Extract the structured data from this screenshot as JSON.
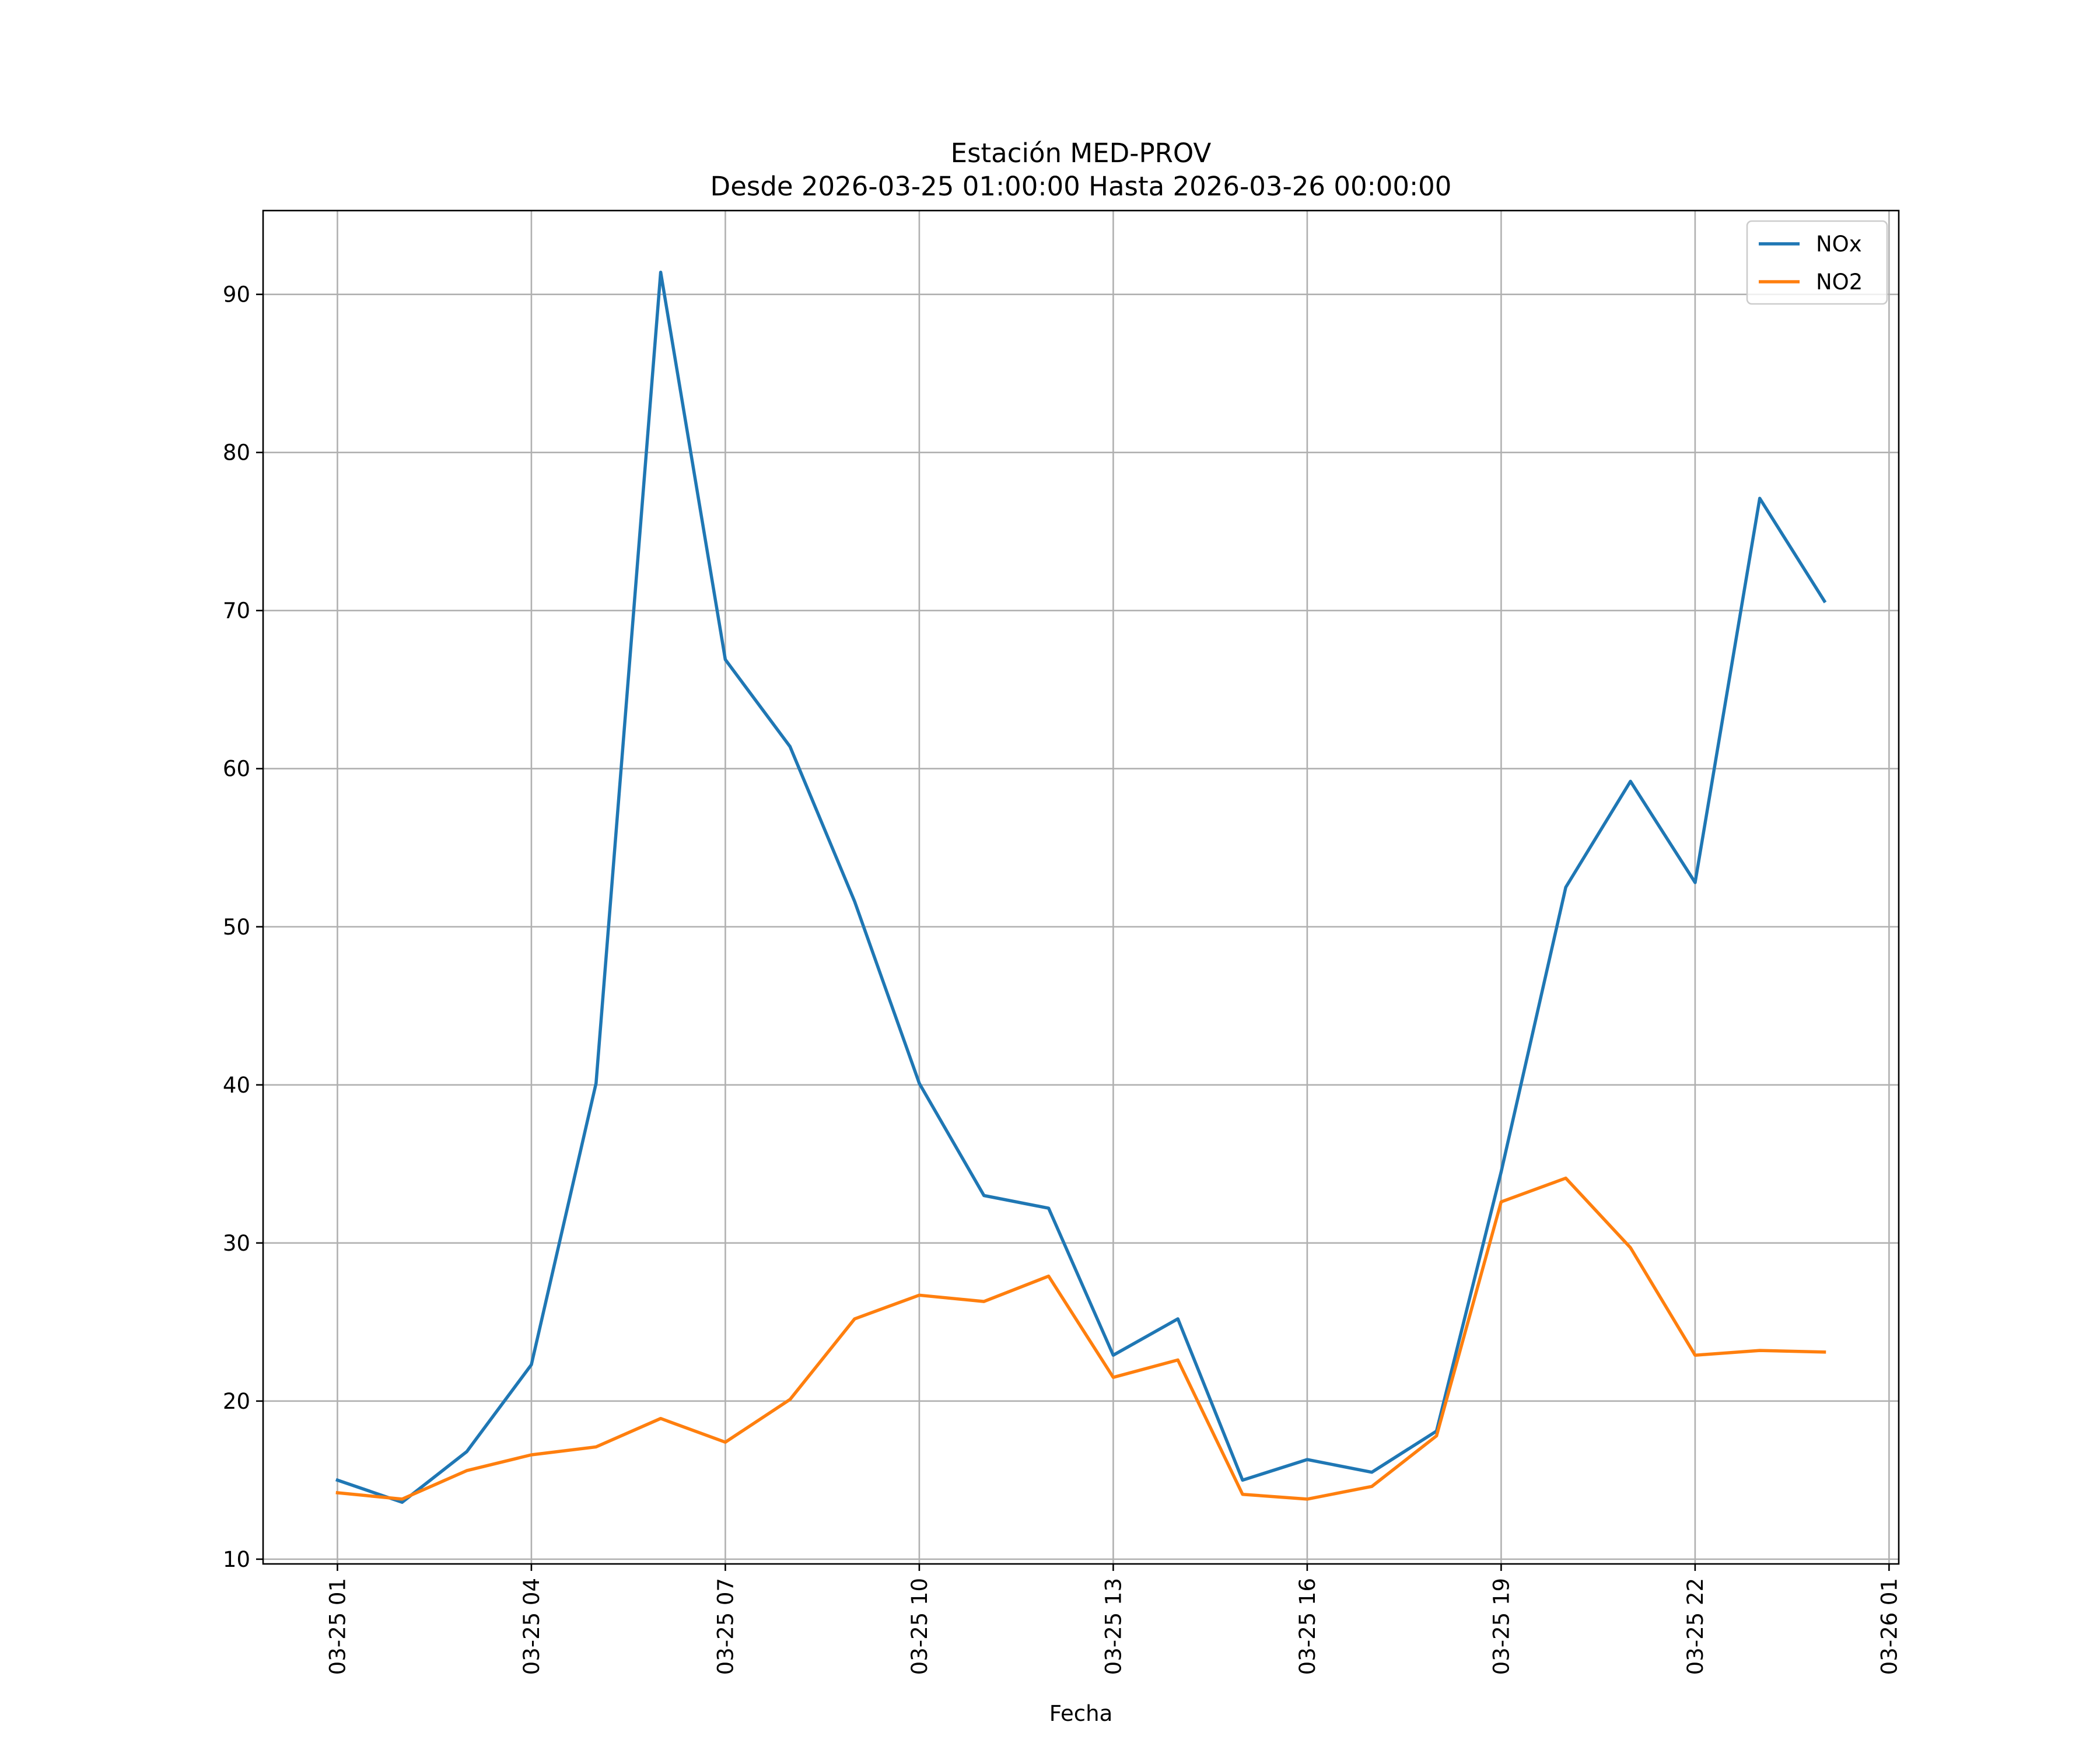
{
  "chart_data": {
    "type": "line",
    "title": "Estación MED-PROV",
    "subtitle": "Desde 2026-03-25 01:00:00 Hasta 2026-03-26 00:00:00",
    "xlabel": "Fecha",
    "ylabel": "",
    "x": [
      "2026-03-25 01:00",
      "2026-03-25 02:00",
      "2026-03-25 03:00",
      "2026-03-25 04:00",
      "2026-03-25 05:00",
      "2026-03-25 06:00",
      "2026-03-25 07:00",
      "2026-03-25 08:00",
      "2026-03-25 09:00",
      "2026-03-25 10:00",
      "2026-03-25 11:00",
      "2026-03-25 12:00",
      "2026-03-25 13:00",
      "2026-03-25 14:00",
      "2026-03-25 15:00",
      "2026-03-25 16:00",
      "2026-03-25 17:00",
      "2026-03-25 18:00",
      "2026-03-25 19:00",
      "2026-03-25 20:00",
      "2026-03-25 21:00",
      "2026-03-25 22:00",
      "2026-03-25 23:00",
      "2026-03-26 00:00"
    ],
    "series": [
      {
        "name": "NOx",
        "color": "#1f77b4",
        "values": [
          15.0,
          13.6,
          16.8,
          22.3,
          40.1,
          91.4,
          66.9,
          61.4,
          51.6,
          40.1,
          33.0,
          32.2,
          22.9,
          25.2,
          15.0,
          16.3,
          15.5,
          18.1,
          34.5,
          52.5,
          59.2,
          52.8,
          77.1,
          70.6
        ]
      },
      {
        "name": "NO2",
        "color": "#ff7f0e",
        "values": [
          14.2,
          13.8,
          15.6,
          16.6,
          17.1,
          18.9,
          17.4,
          20.1,
          25.2,
          26.7,
          26.3,
          27.9,
          21.5,
          22.6,
          14.1,
          13.8,
          14.6,
          17.8,
          32.6,
          34.1,
          29.7,
          22.9,
          23.2,
          23.1
        ]
      }
    ],
    "xticks": [
      "03-25 01",
      "03-25 04",
      "03-25 07",
      "03-25 10",
      "03-25 13",
      "03-25 16",
      "03-25 19",
      "03-25 22",
      "03-26 01"
    ],
    "xtick_dates": [
      "2026-03-25 01:00",
      "2026-03-25 04:00",
      "2026-03-25 07:00",
      "2026-03-25 10:00",
      "2026-03-25 13:00",
      "2026-03-25 16:00",
      "2026-03-25 19:00",
      "2026-03-25 22:00",
      "2026-03-26 01:00"
    ],
    "yticks": [
      "10",
      "20",
      "30",
      "40",
      "50",
      "60",
      "70",
      "80",
      "90"
    ],
    "ytick_values": [
      10,
      20,
      30,
      40,
      50,
      60,
      70,
      80,
      90
    ],
    "xlim": [
      "2026-03-24 23:51",
      "2026-03-26 01:09"
    ],
    "ylim": [
      9.7,
      95.3
    ],
    "grid": true,
    "legend": "top-right"
  }
}
